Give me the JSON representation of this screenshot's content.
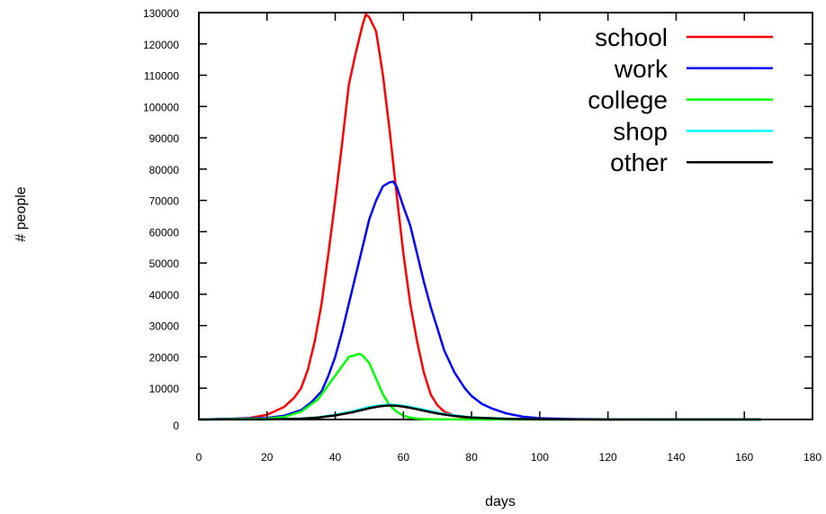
{
  "chart_data": {
    "type": "line",
    "title": "",
    "xlabel": "days",
    "ylabel": "# people",
    "xlim": [
      0,
      180
    ],
    "ylim": [
      0,
      130000
    ],
    "xticks": [
      0,
      20,
      40,
      60,
      80,
      100,
      120,
      140,
      160,
      180
    ],
    "yticks": [
      0,
      10000,
      20000,
      30000,
      40000,
      50000,
      60000,
      70000,
      80000,
      90000,
      100000,
      110000,
      120000,
      130000
    ],
    "grid": false,
    "legend_position": "top-right",
    "series": [
      {
        "name": "school",
        "color": "#ff0000",
        "x": [
          0,
          10,
          15,
          20,
          25,
          28,
          30,
          32,
          34,
          36,
          38,
          40,
          42,
          44,
          46,
          48,
          49,
          50,
          52,
          54,
          56,
          58,
          60,
          62,
          64,
          66,
          68,
          70,
          72,
          75,
          78,
          80,
          85,
          90,
          100,
          120,
          140,
          165
        ],
        "y": [
          0,
          200,
          500,
          1500,
          4000,
          7000,
          10000,
          16000,
          25000,
          37000,
          53000,
          70000,
          88000,
          107000,
          117000,
          126000,
          129500,
          128500,
          124000,
          110000,
          92000,
          72000,
          53000,
          37000,
          25000,
          15000,
          8000,
          4500,
          2500,
          1200,
          600,
          400,
          150,
          80,
          30,
          0,
          0,
          0
        ]
      },
      {
        "name": "work",
        "color": "#0000ff",
        "x": [
          0,
          20,
          25,
          30,
          33,
          36,
          38,
          40,
          42,
          44,
          46,
          48,
          50,
          52,
          54,
          56,
          57,
          58,
          60,
          62,
          64,
          66,
          68,
          70,
          72,
          75,
          78,
          80,
          83,
          86,
          90,
          95,
          100,
          110,
          120,
          140,
          165
        ],
        "y": [
          0,
          500,
          1200,
          3000,
          5500,
          9000,
          14000,
          20000,
          28000,
          37000,
          46000,
          55000,
          64000,
          70000,
          74500,
          75800,
          76000,
          74500,
          68000,
          62000,
          53000,
          44000,
          36000,
          29000,
          22000,
          15000,
          10000,
          7500,
          5000,
          3500,
          2000,
          900,
          400,
          150,
          60,
          0,
          0
        ]
      },
      {
        "name": "college",
        "color": "#00ff00",
        "x": [
          0,
          20,
          25,
          30,
          35,
          38,
          40,
          42,
          44,
          46,
          47,
          48,
          50,
          52,
          54,
          56,
          58,
          60,
          62,
          64,
          66,
          70,
          80,
          165
        ],
        "y": [
          0,
          300,
          800,
          2500,
          6500,
          11000,
          14000,
          17000,
          20000,
          20600,
          21000,
          20500,
          18000,
          13000,
          8000,
          4500,
          2500,
          1200,
          600,
          300,
          150,
          50,
          0,
          0
        ]
      },
      {
        "name": "shop",
        "color": "#00ffff",
        "x": [
          0,
          20,
          30,
          35,
          40,
          45,
          50,
          53,
          56,
          58,
          60,
          63,
          66,
          70,
          75,
          80,
          90,
          100,
          120,
          165
        ],
        "y": [
          0,
          50,
          300,
          700,
          1500,
          2600,
          4000,
          4500,
          4700,
          4600,
          4400,
          3800,
          3100,
          2200,
          1300,
          700,
          250,
          80,
          20,
          0
        ]
      },
      {
        "name": "other",
        "color": "#000000",
        "x": [
          0,
          20,
          30,
          35,
          40,
          45,
          50,
          53,
          56,
          58,
          60,
          63,
          66,
          70,
          75,
          80,
          90,
          100,
          120,
          165
        ],
        "y": [
          0,
          50,
          250,
          600,
          1300,
          2300,
          3600,
          4200,
          4500,
          4400,
          4100,
          3500,
          2800,
          1900,
          1100,
          600,
          200,
          70,
          15,
          0
        ]
      }
    ]
  }
}
